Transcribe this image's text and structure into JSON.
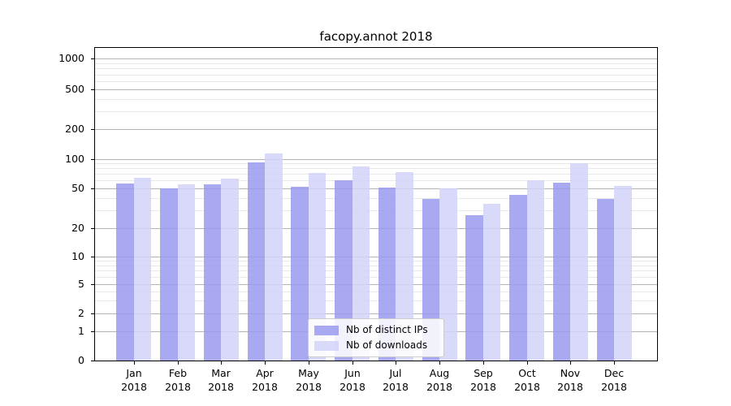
{
  "figure": {
    "title": "facopy.annot 2018"
  },
  "chart_data": {
    "type": "bar",
    "title": "facopy.annot 2018",
    "categories": [
      "Jan",
      "Feb",
      "Mar",
      "Apr",
      "May",
      "Jun",
      "Jul",
      "Aug",
      "Sep",
      "Oct",
      "Nov",
      "Dec"
    ],
    "category_year": "2018",
    "series": [
      {
        "name": "Nb of distinct IPs",
        "key": "ips",
        "color": "#9a9af0",
        "values": [
          56,
          50,
          55,
          92,
          52,
          60,
          51,
          39,
          27,
          43,
          57,
          39
        ]
      },
      {
        "name": "Nb of downloads",
        "key": "downloads",
        "color": "#d2d2f8",
        "values": [
          64,
          55,
          63,
          113,
          72,
          84,
          74,
          50,
          35,
          60,
          91,
          53
        ]
      }
    ],
    "yscale": "symlog",
    "yticks": [
      0,
      1,
      2,
      5,
      10,
      20,
      50,
      100,
      200,
      500,
      1000
    ],
    "ylim": [
      0,
      1300
    ],
    "bar_alpha": 0.85,
    "grid": {
      "major_color": "#b4b4b4",
      "minor_color": "#e9e9e9"
    },
    "legend": {
      "position": "lower center",
      "entries": [
        "Nb of distinct IPs",
        "Nb of downloads"
      ]
    },
    "xlabel": "",
    "ylabel": ""
  }
}
